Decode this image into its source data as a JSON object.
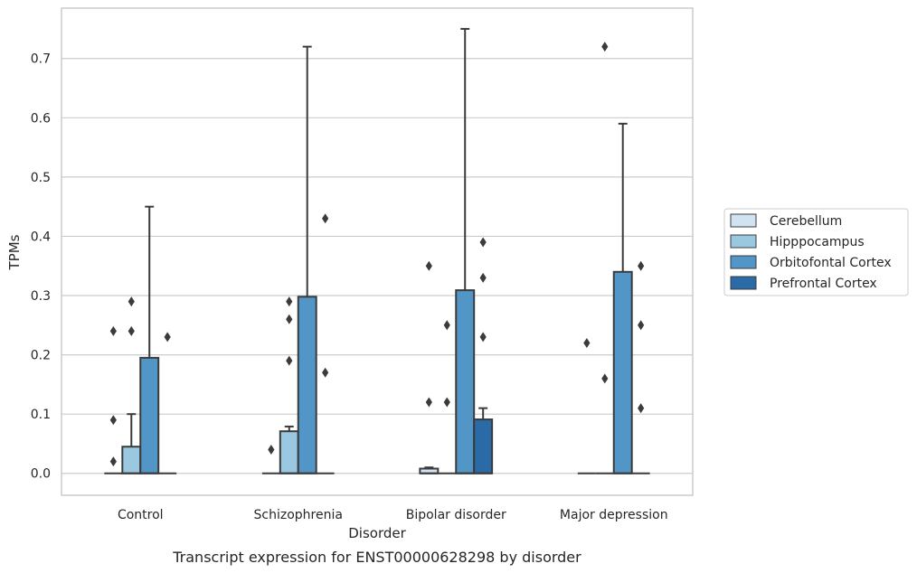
{
  "chart_data": {
    "type": "box",
    "title": "",
    "caption": "Transcript expression for ENST00000628298 by disorder",
    "xlabel": "Disorder",
    "ylabel": "TPMs",
    "ylim": [
      -0.037,
      0.785
    ],
    "yticks": [
      0.0,
      0.1,
      0.2,
      0.3,
      0.4,
      0.5,
      0.6,
      0.7
    ],
    "ytick_labels": [
      "0.0",
      "0.1",
      "0.2",
      "0.3",
      "0.4",
      "0.5",
      "0.6",
      "0.7"
    ],
    "grid": "horizontal",
    "legend_position": "right",
    "categories": [
      "Control",
      "Schizophrenia",
      "Bipolar disorder",
      "Major depression"
    ],
    "series": [
      {
        "name": "Cerebellum",
        "color": "#d1e2f2",
        "boxes": [
          {
            "q1": 0,
            "median": 0,
            "q3": 0,
            "whisker_low": 0,
            "whisker_high": 0,
            "outliers": [
              0.02,
              0.09,
              0.24
            ]
          },
          {
            "q1": 0,
            "median": 0,
            "q3": 0,
            "whisker_low": 0,
            "whisker_high": 0,
            "outliers": [
              0.04
            ]
          },
          {
            "q1": 0,
            "median": 0,
            "q3": 0.008,
            "whisker_low": 0,
            "whisker_high": 0.01,
            "outliers": [
              0.12,
              0.35
            ]
          },
          {
            "q1": 0,
            "median": 0,
            "q3": 0,
            "whisker_low": 0,
            "whisker_high": 0,
            "outliers": [
              0.22
            ]
          }
        ]
      },
      {
        "name": "Hipppocampus",
        "color": "#9ac8e0",
        "boxes": [
          {
            "q1": 0,
            "median": 0,
            "q3": 0.045,
            "whisker_low": 0,
            "whisker_high": 0.1,
            "outliers": [
              0.24,
              0.29
            ]
          },
          {
            "q1": 0,
            "median": 0,
            "q3": 0.071,
            "whisker_low": 0,
            "whisker_high": 0.079,
            "outliers": [
              0.19,
              0.26,
              0.29
            ]
          },
          {
            "q1": 0,
            "median": 0,
            "q3": 0,
            "whisker_low": 0,
            "whisker_high": 0,
            "outliers": [
              0.12,
              0.25
            ]
          },
          {
            "q1": 0,
            "median": 0,
            "q3": 0,
            "whisker_low": 0,
            "whisker_high": 0,
            "outliers": [
              0.16,
              0.72
            ]
          }
        ]
      },
      {
        "name": "Orbitofontal Cortex",
        "color": "#5196c6",
        "boxes": [
          {
            "q1": 0,
            "median": 0,
            "q3": 0.195,
            "whisker_low": 0,
            "whisker_high": 0.45,
            "outliers": []
          },
          {
            "q1": 0,
            "median": 0,
            "q3": 0.298,
            "whisker_low": 0,
            "whisker_high": 0.72,
            "outliers": []
          },
          {
            "q1": 0,
            "median": 0,
            "q3": 0.309,
            "whisker_low": 0,
            "whisker_high": 0.75,
            "outliers": []
          },
          {
            "q1": 0,
            "median": 0,
            "q3": 0.34,
            "whisker_low": 0,
            "whisker_high": 0.59,
            "outliers": []
          }
        ]
      },
      {
        "name": "Prefrontal Cortex",
        "color": "#2a6aa6",
        "boxes": [
          {
            "q1": 0,
            "median": 0,
            "q3": 0,
            "whisker_low": 0,
            "whisker_high": 0,
            "outliers": [
              0.23
            ]
          },
          {
            "q1": 0,
            "median": 0,
            "q3": 0,
            "whisker_low": 0,
            "whisker_high": 0,
            "outliers": [
              0.17,
              0.43
            ]
          },
          {
            "q1": 0,
            "median": 0,
            "q3": 0.091,
            "whisker_low": 0,
            "whisker_high": 0.11,
            "outliers": [
              0.23,
              0.33,
              0.39
            ]
          },
          {
            "q1": 0,
            "median": 0,
            "q3": 0,
            "whisker_low": 0,
            "whisker_high": 0,
            "outliers": [
              0.11,
              0.25,
              0.35
            ]
          }
        ]
      }
    ]
  }
}
